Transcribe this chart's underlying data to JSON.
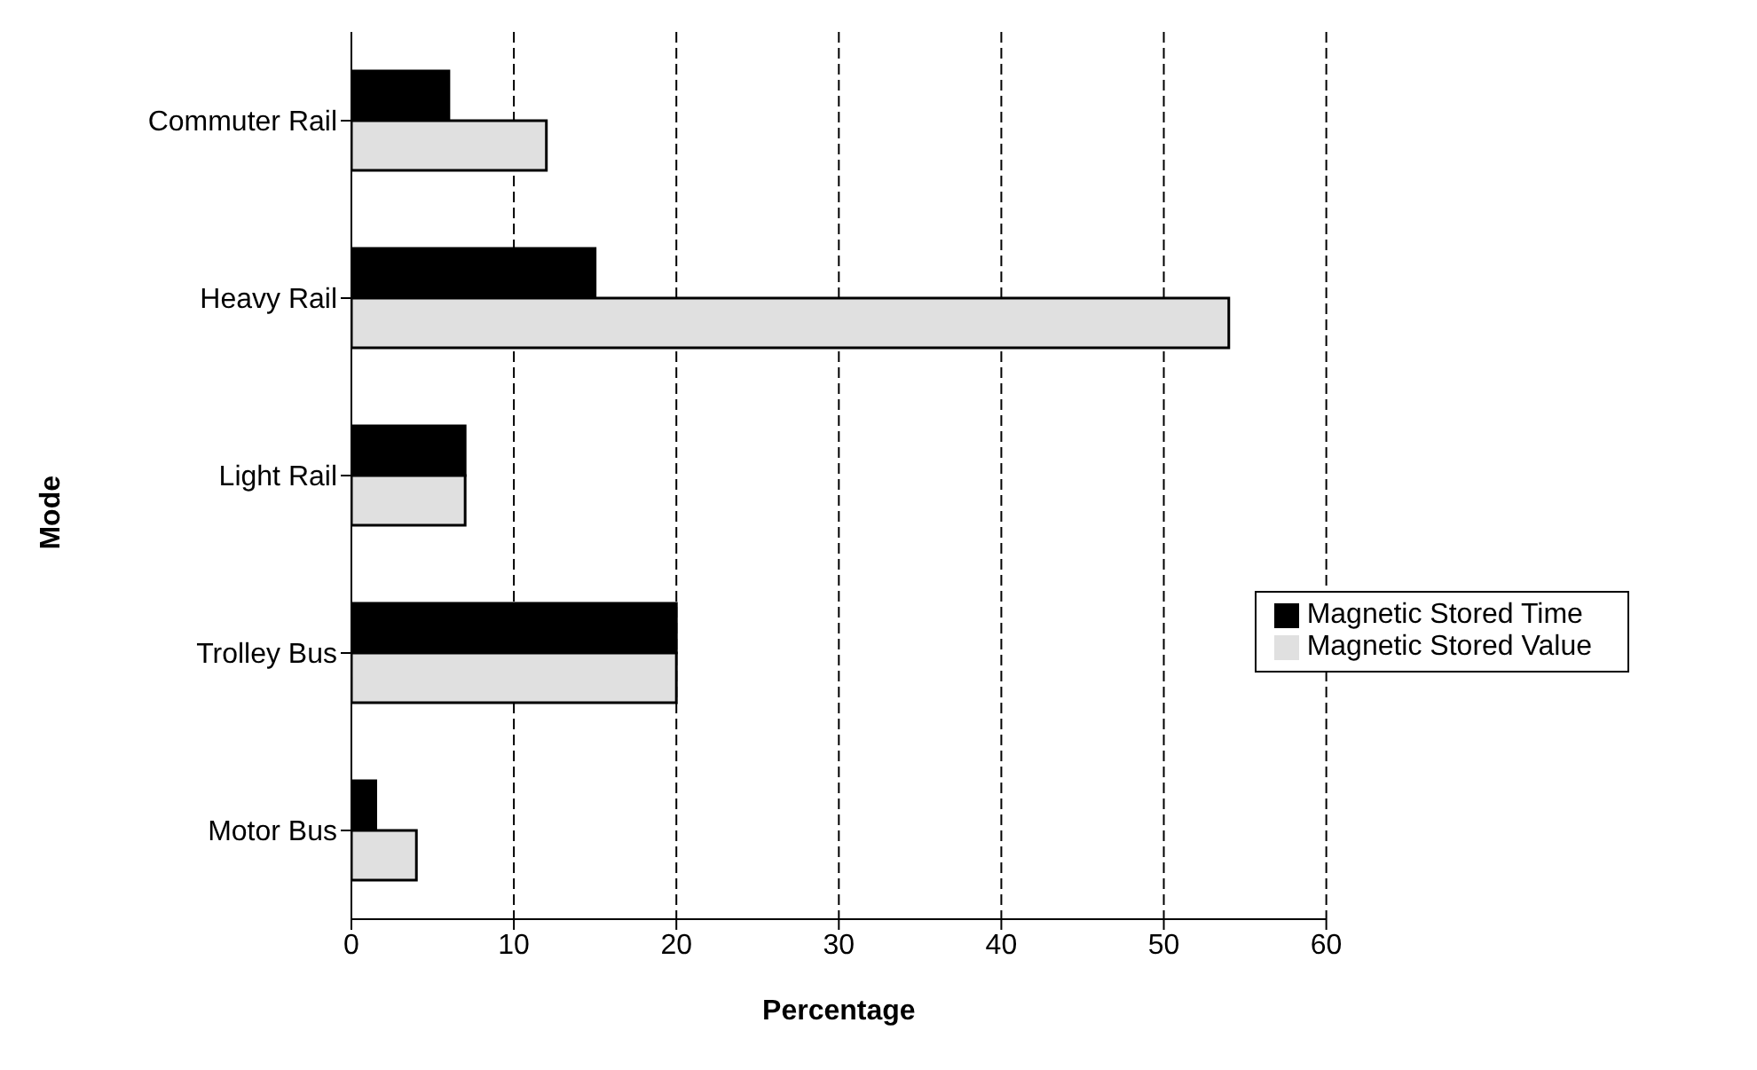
{
  "chart_data": {
    "type": "bar",
    "orientation": "horizontal",
    "xlabel": "Percentage",
    "ylabel": "Mode",
    "categories": [
      "Commuter Rail",
      "Heavy Rail",
      "Light Rail",
      "Trolley Bus",
      "Motor Bus"
    ],
    "series": [
      {
        "name": "Magnetic Stored Time",
        "color": "#000000",
        "values": [
          6,
          15,
          7,
          20,
          1.5
        ]
      },
      {
        "name": "Magnetic Stored Value",
        "color": "#e0e0e0",
        "values": [
          12,
          54,
          7,
          20,
          4
        ]
      }
    ],
    "xlim": [
      0,
      60
    ],
    "xticks": [
      0,
      10,
      20,
      30,
      40,
      50,
      60
    ],
    "grid": "x",
    "legend": "right"
  }
}
